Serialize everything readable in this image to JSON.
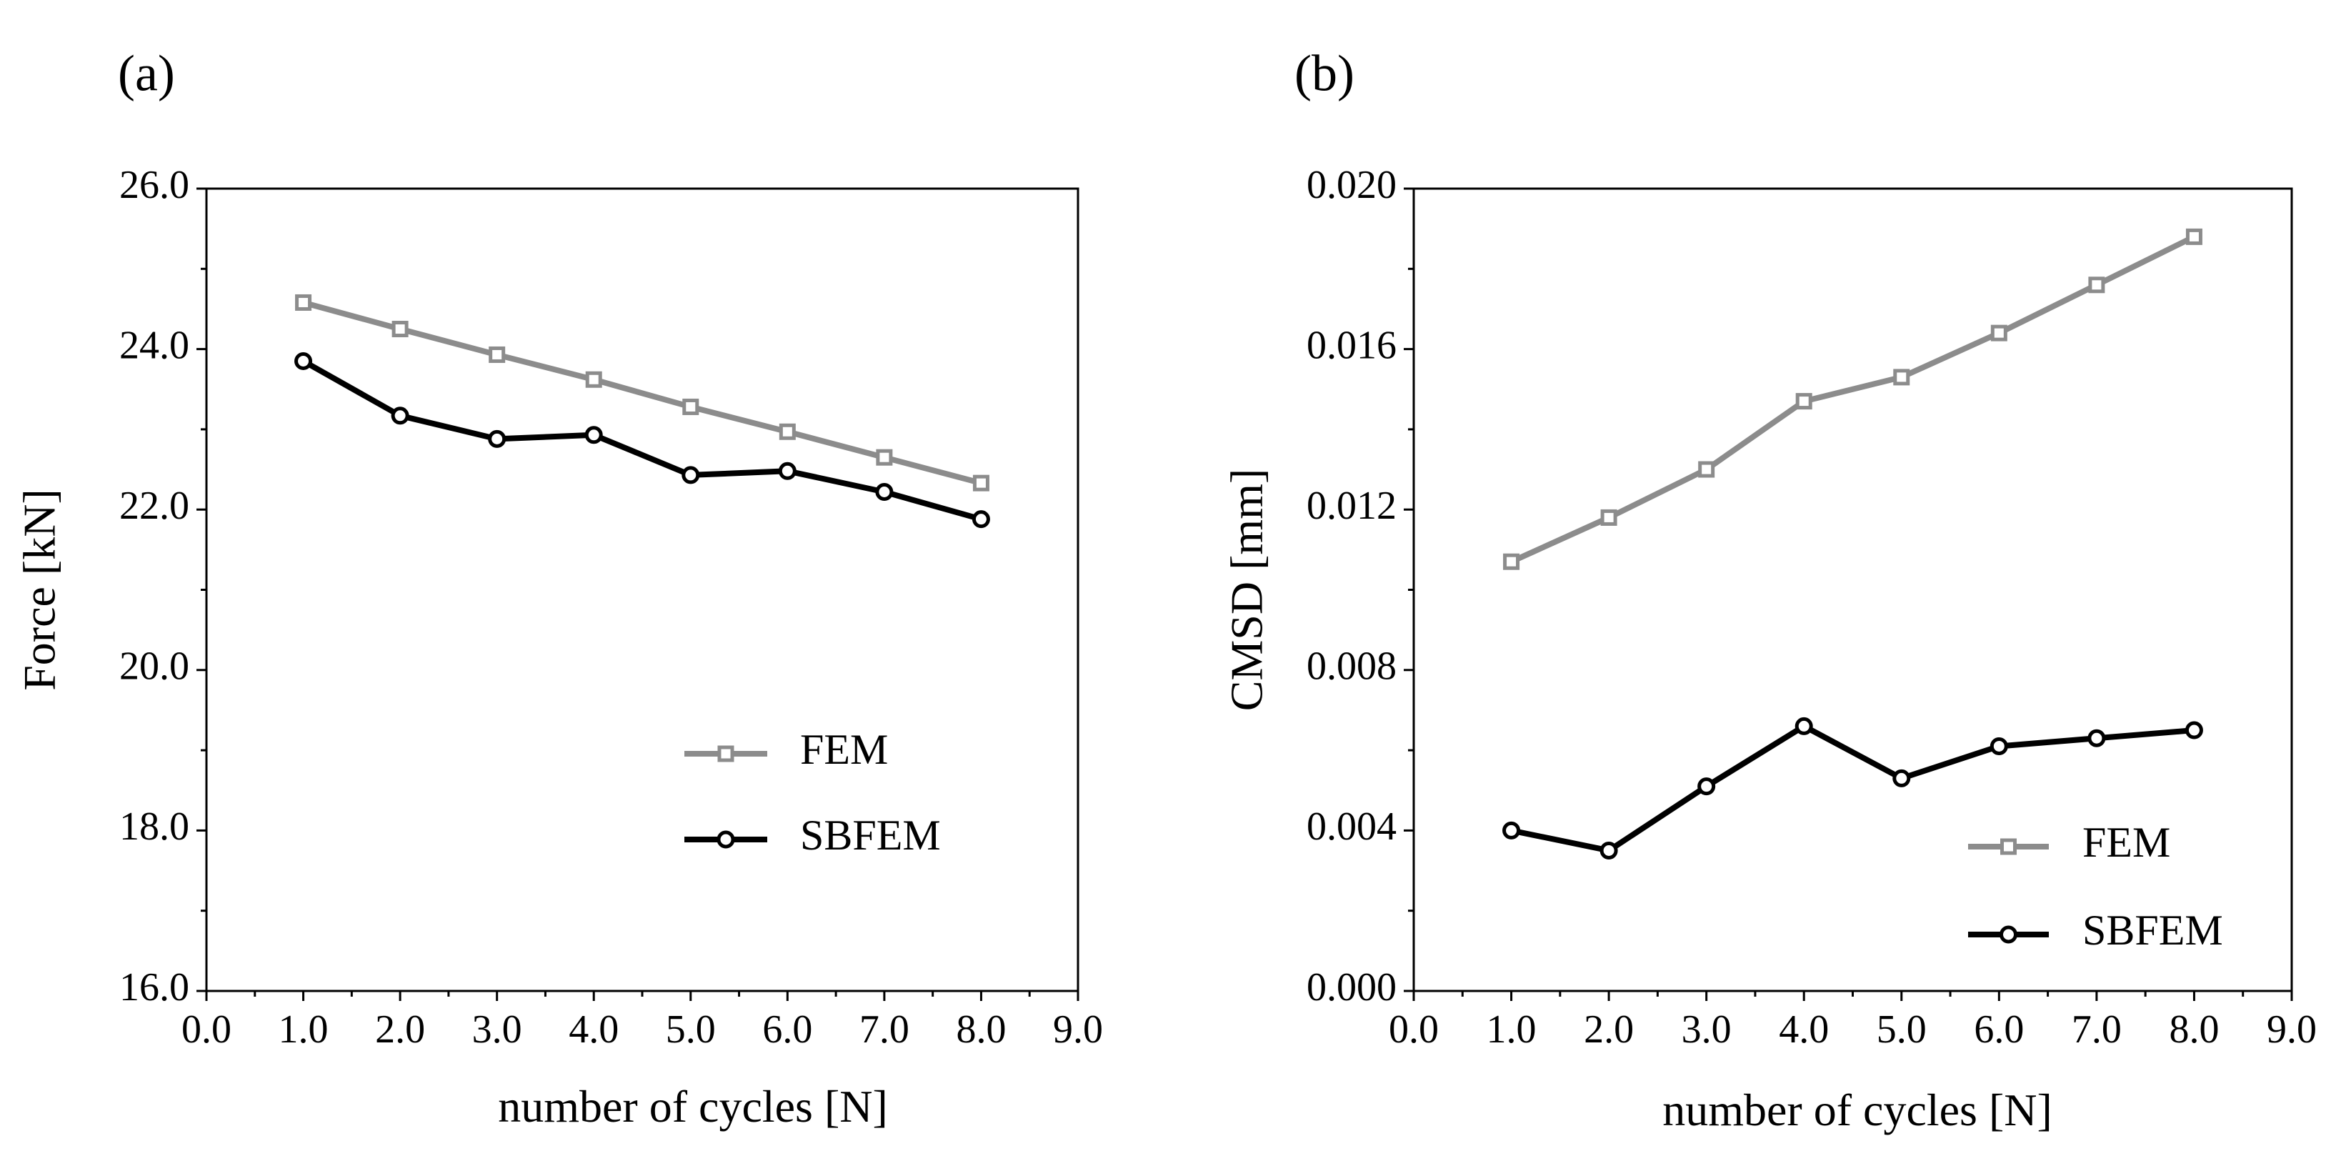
{
  "chart_data": [
    {
      "type": "line",
      "panel_label": "(a)",
      "title": "",
      "xlabel": "number of cycles [N]",
      "ylabel": "Force [kN]",
      "xlim": [
        0,
        9
      ],
      "ylim": [
        16,
        26
      ],
      "xticks": [
        0,
        1,
        2,
        3,
        4,
        5,
        6,
        7,
        8,
        9
      ],
      "xtick_labels": [
        "0.0",
        "1.0",
        "2.0",
        "3.0",
        "4.0",
        "5.0",
        "6.0",
        "7.0",
        "8.0",
        "9.0"
      ],
      "yticks": [
        16,
        18,
        20,
        22,
        24,
        26
      ],
      "ytick_labels": [
        "16.0",
        "18.0",
        "20.0",
        "22.0",
        "24.0",
        "26.0"
      ],
      "grid": false,
      "legend_position": "lower-right",
      "x": [
        1,
        2,
        3,
        4,
        5,
        6,
        7,
        8
      ],
      "series": [
        {
          "name": "FEM",
          "color": "#8c8c8c",
          "marker": "square",
          "values": [
            24.58,
            24.25,
            23.93,
            23.62,
            23.28,
            22.97,
            22.65,
            22.33
          ]
        },
        {
          "name": "SBFEM",
          "color": "#000000",
          "marker": "circle",
          "values": [
            23.85,
            23.17,
            22.88,
            22.93,
            22.43,
            22.48,
            22.22,
            21.88
          ]
        }
      ]
    },
    {
      "type": "line",
      "panel_label": "(b)",
      "title": "",
      "xlabel": "number of cycles [N]",
      "ylabel": "CMSD [mm]",
      "xlim": [
        0,
        9
      ],
      "ylim": [
        0,
        0.02
      ],
      "xticks": [
        0,
        1,
        2,
        3,
        4,
        5,
        6,
        7,
        8,
        9
      ],
      "xtick_labels": [
        "0.0",
        "1.0",
        "2.0",
        "3.0",
        "4.0",
        "5.0",
        "6.0",
        "7.0",
        "8.0",
        "9.0"
      ],
      "yticks": [
        0,
        0.004,
        0.008,
        0.012,
        0.016,
        0.02
      ],
      "ytick_labels": [
        "0.000",
        "0.004",
        "0.008",
        "0.012",
        "0.016",
        "0.020"
      ],
      "grid": false,
      "legend_position": "lower-right",
      "x": [
        1,
        2,
        3,
        4,
        5,
        6,
        7,
        8
      ],
      "series": [
        {
          "name": "FEM",
          "color": "#8c8c8c",
          "marker": "square",
          "values": [
            0.0107,
            0.0118,
            0.013,
            0.0147,
            0.0153,
            0.0164,
            0.0176,
            0.0188
          ]
        },
        {
          "name": "SBFEM",
          "color": "#000000",
          "marker": "circle",
          "values": [
            0.004,
            0.0035,
            0.0051,
            0.0066,
            0.0053,
            0.0061,
            0.0063,
            0.0065
          ]
        }
      ]
    }
  ]
}
